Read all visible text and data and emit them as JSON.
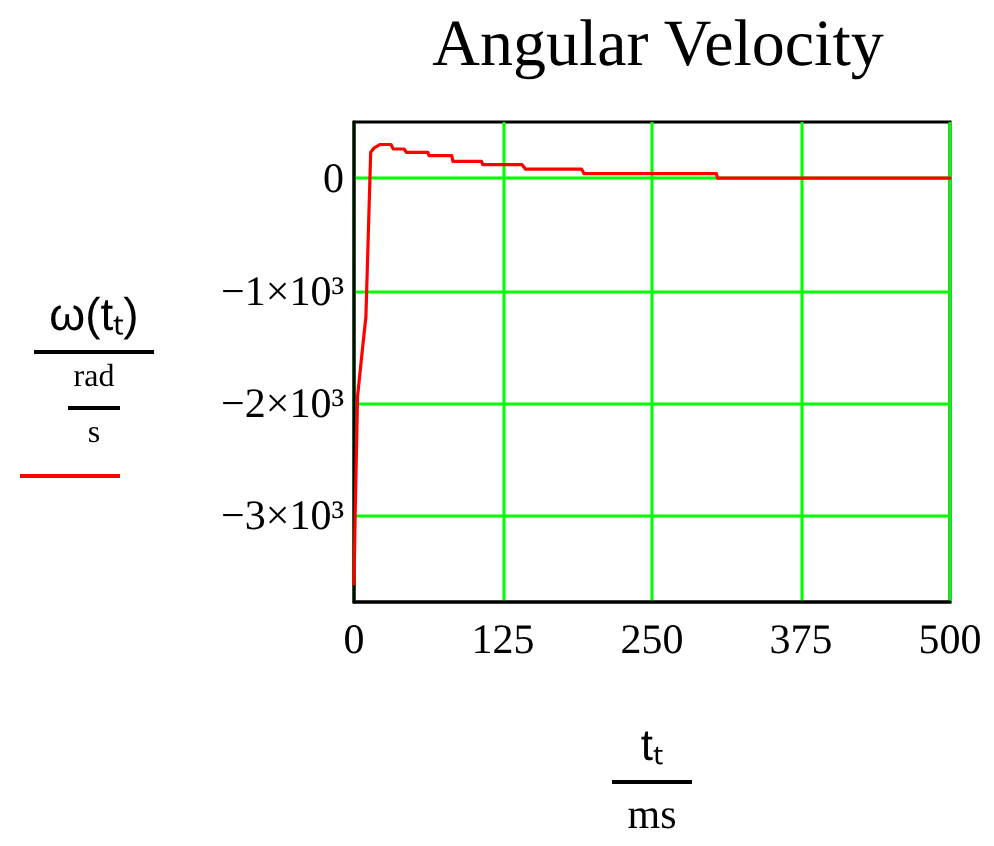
{
  "chart_data": {
    "type": "line",
    "title": "Angular Velocity",
    "xlabel": "tₜ\nms",
    "ylabel": "ω(tₜ)\nrad\ns",
    "x": [
      0,
      1,
      3,
      7,
      10,
      14,
      17,
      22,
      31,
      33,
      42,
      44,
      62,
      63,
      82,
      83,
      107,
      108,
      141,
      144,
      191,
      193,
      304,
      305,
      500
    ],
    "values": [
      -3610,
      -2980,
      -1940,
      -1530,
      -1230,
      230,
      270,
      300,
      300,
      260,
      260,
      230,
      230,
      200,
      200,
      150,
      150,
      120,
      120,
      80,
      80,
      40,
      40,
      0,
      0
    ],
    "color": "#ff0000",
    "marker": "none",
    "grid": true,
    "xlim": [
      0,
      500
    ],
    "xticks": [
      0,
      125,
      250,
      375,
      500
    ],
    "ylim": [
      -3770,
      500
    ],
    "yticks": [
      0,
      {
        "value": -1000,
        "label": "−1×10³"
      },
      {
        "value": -2000,
        "label": "−2×10³"
      },
      {
        "value": -3000,
        "label": "−3×10³"
      }
    ]
  }
}
